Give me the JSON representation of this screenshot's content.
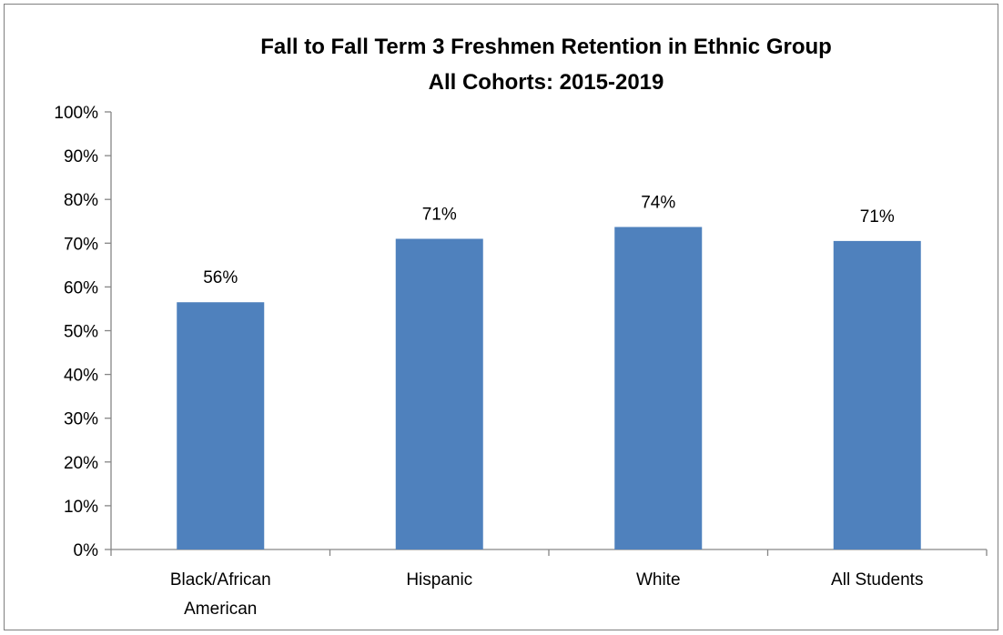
{
  "chart_data": {
    "type": "bar",
    "title": "Fall to Fall Term 3 Freshmen Retention  in Ethnic Group",
    "subtitle": "All Cohorts: 2015-2019",
    "xlabel": "",
    "ylabel": "",
    "categories": [
      [
        "Black/African",
        "American"
      ],
      [
        "Hispanic"
      ],
      [
        "White"
      ],
      [
        "All Students"
      ]
    ],
    "values": [
      56.5,
      71,
      73.7,
      70.5
    ],
    "data_labels": [
      "56%",
      "71%",
      "74%",
      "71%"
    ],
    "ylim": [
      0,
      100
    ],
    "yticks": [
      0,
      10,
      20,
      30,
      40,
      50,
      60,
      70,
      80,
      90,
      100
    ],
    "ytick_labels": [
      "0%",
      "10%",
      "20%",
      "30%",
      "40%",
      "50%",
      "60%",
      "70%",
      "80%",
      "90%",
      "100%"
    ],
    "grid": false,
    "legend": "none",
    "bar_color": "#4f81bd"
  }
}
